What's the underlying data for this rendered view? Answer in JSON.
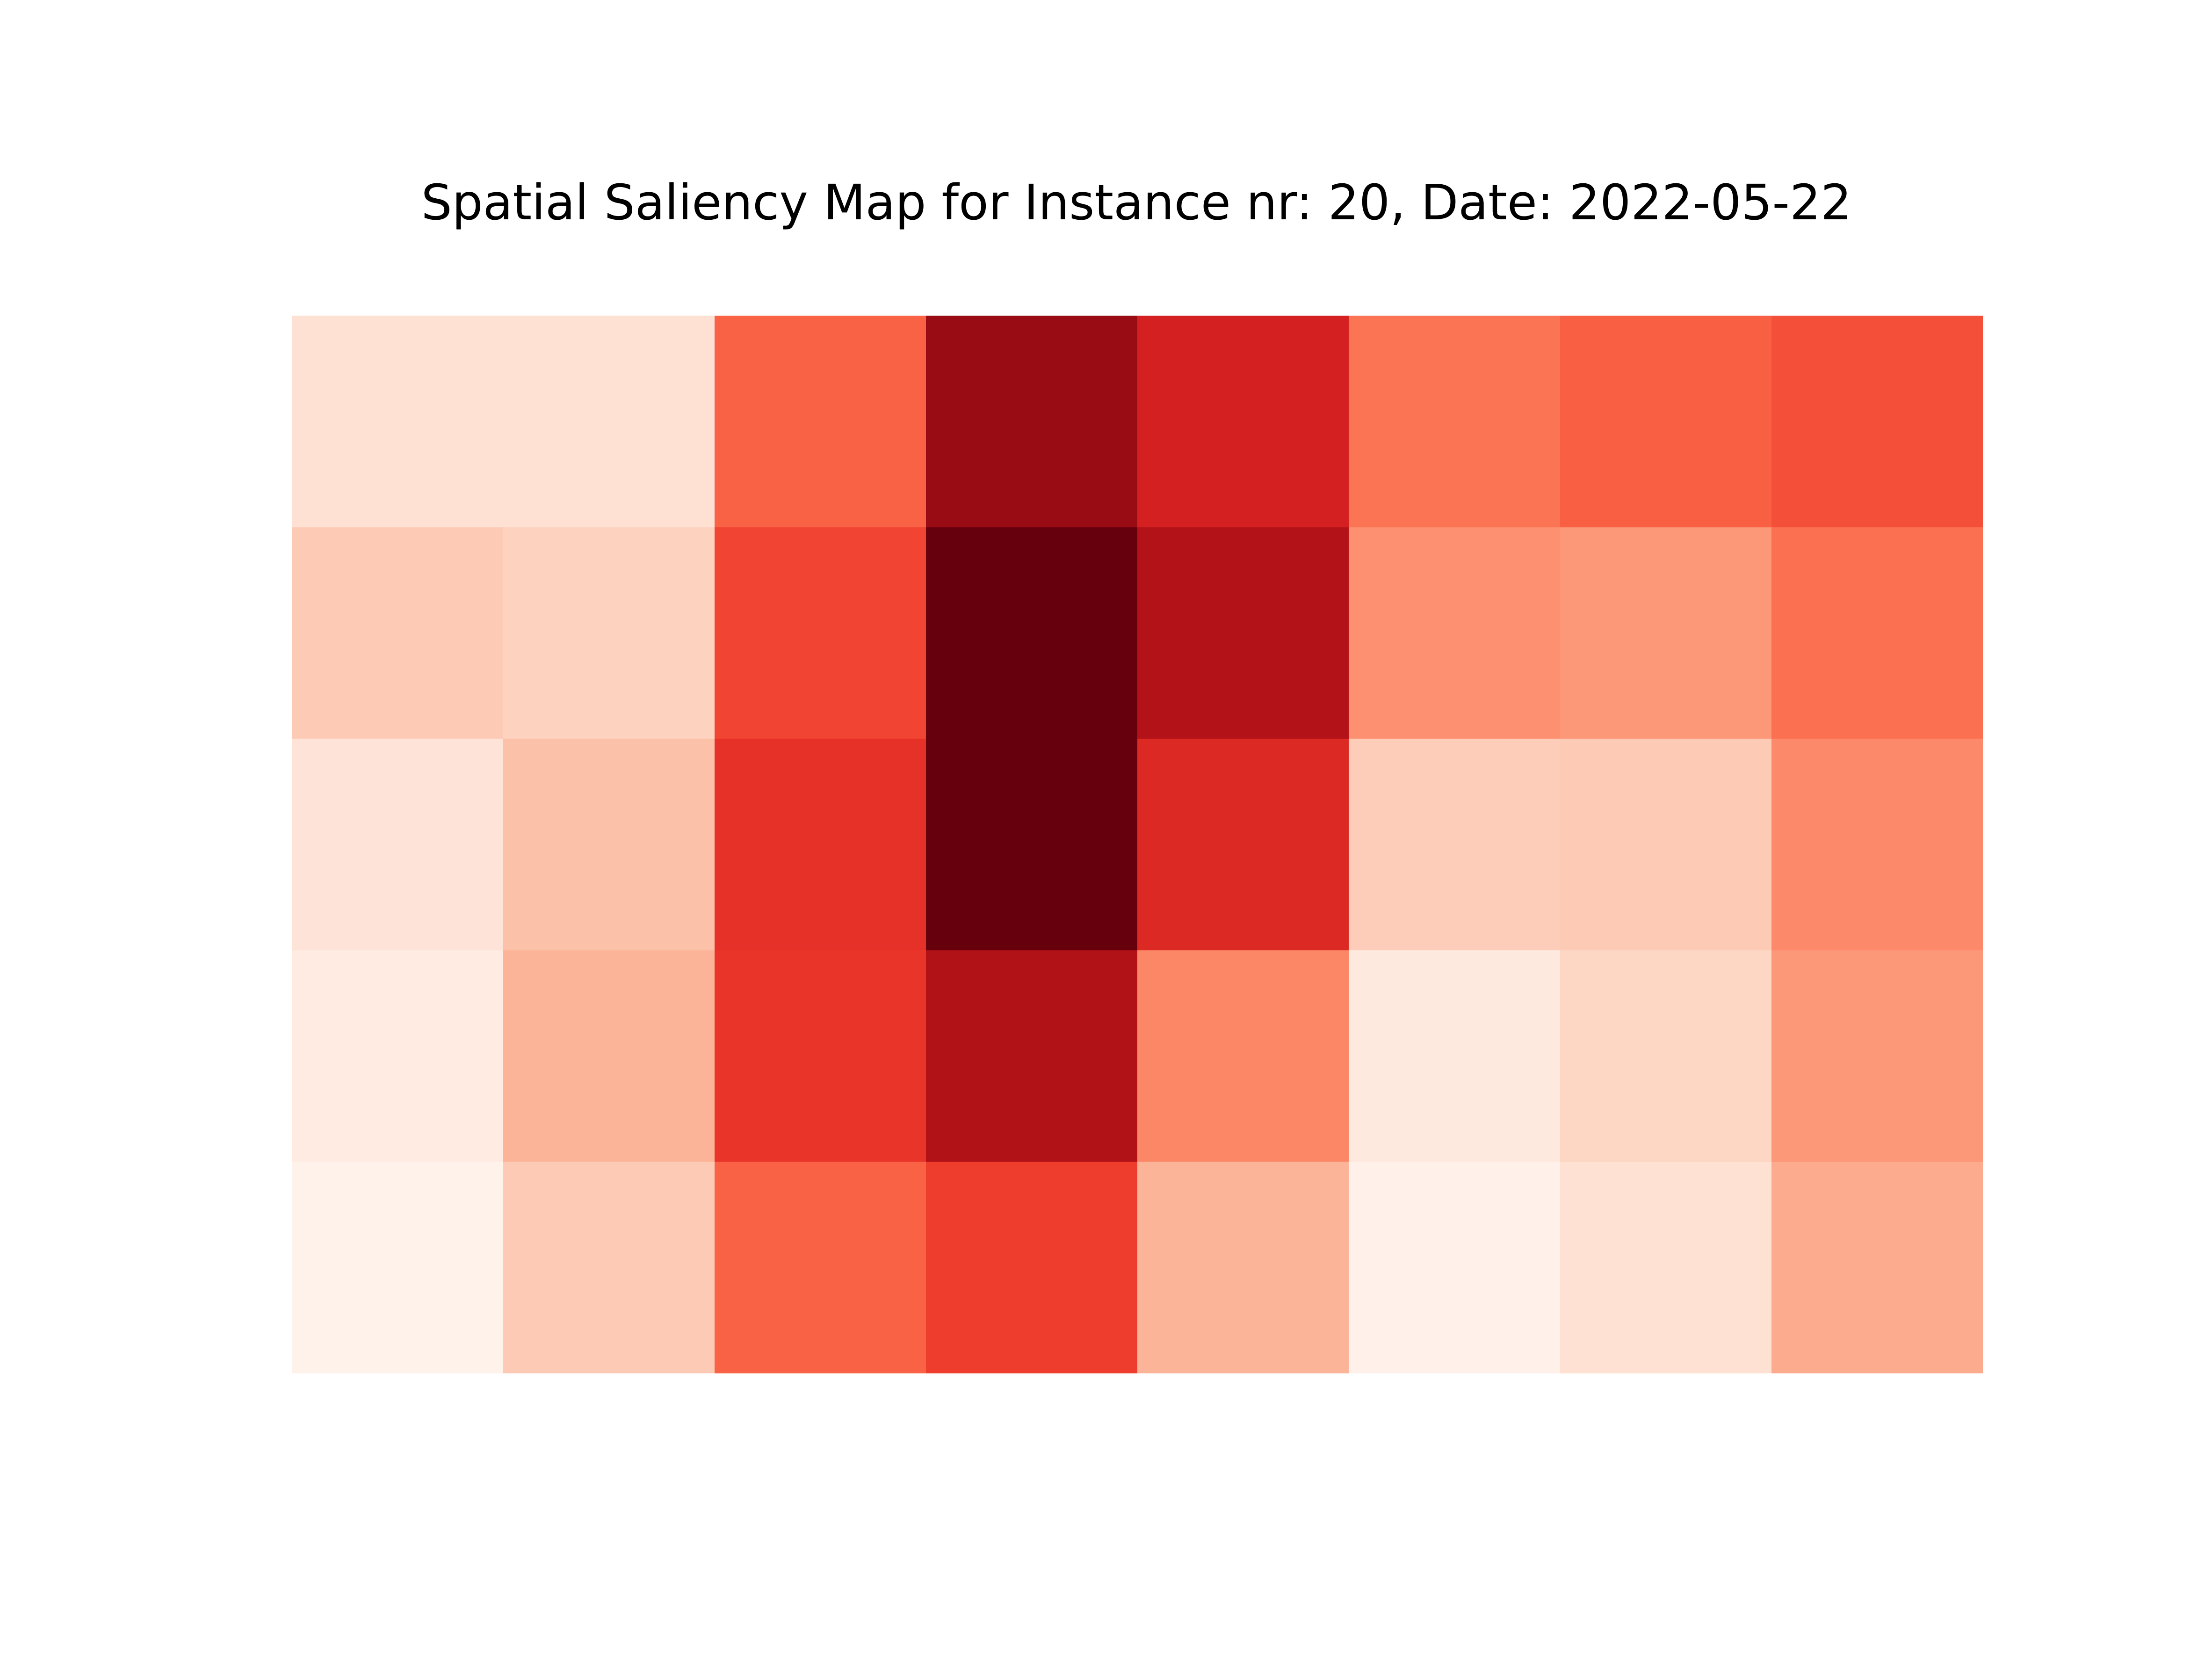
{
  "chart_data": {
    "type": "heatmap",
    "title": "Spatial Saliency Map for Instance nr: 20, Date: 2022-05-22",
    "xlabel": "",
    "ylabel": "",
    "axes_visible": false,
    "grid": false,
    "colormap": "Reds",
    "colorbar": false,
    "rows": 5,
    "cols": 8,
    "value_range": [
      0,
      1
    ],
    "values": [
      [
        0.12,
        0.12,
        0.52,
        0.9,
        0.72,
        0.47,
        0.53,
        0.57
      ],
      [
        0.2,
        0.17,
        0.6,
        1.0,
        0.83,
        0.38,
        0.36,
        0.48
      ],
      [
        0.1,
        0.23,
        0.66,
        1.0,
        0.69,
        0.19,
        0.2,
        0.4
      ],
      [
        0.06,
        0.27,
        0.65,
        0.84,
        0.41,
        0.07,
        0.16,
        0.36
      ],
      [
        0.02,
        0.2,
        0.52,
        0.62,
        0.27,
        0.03,
        0.12,
        0.3
      ]
    ]
  }
}
